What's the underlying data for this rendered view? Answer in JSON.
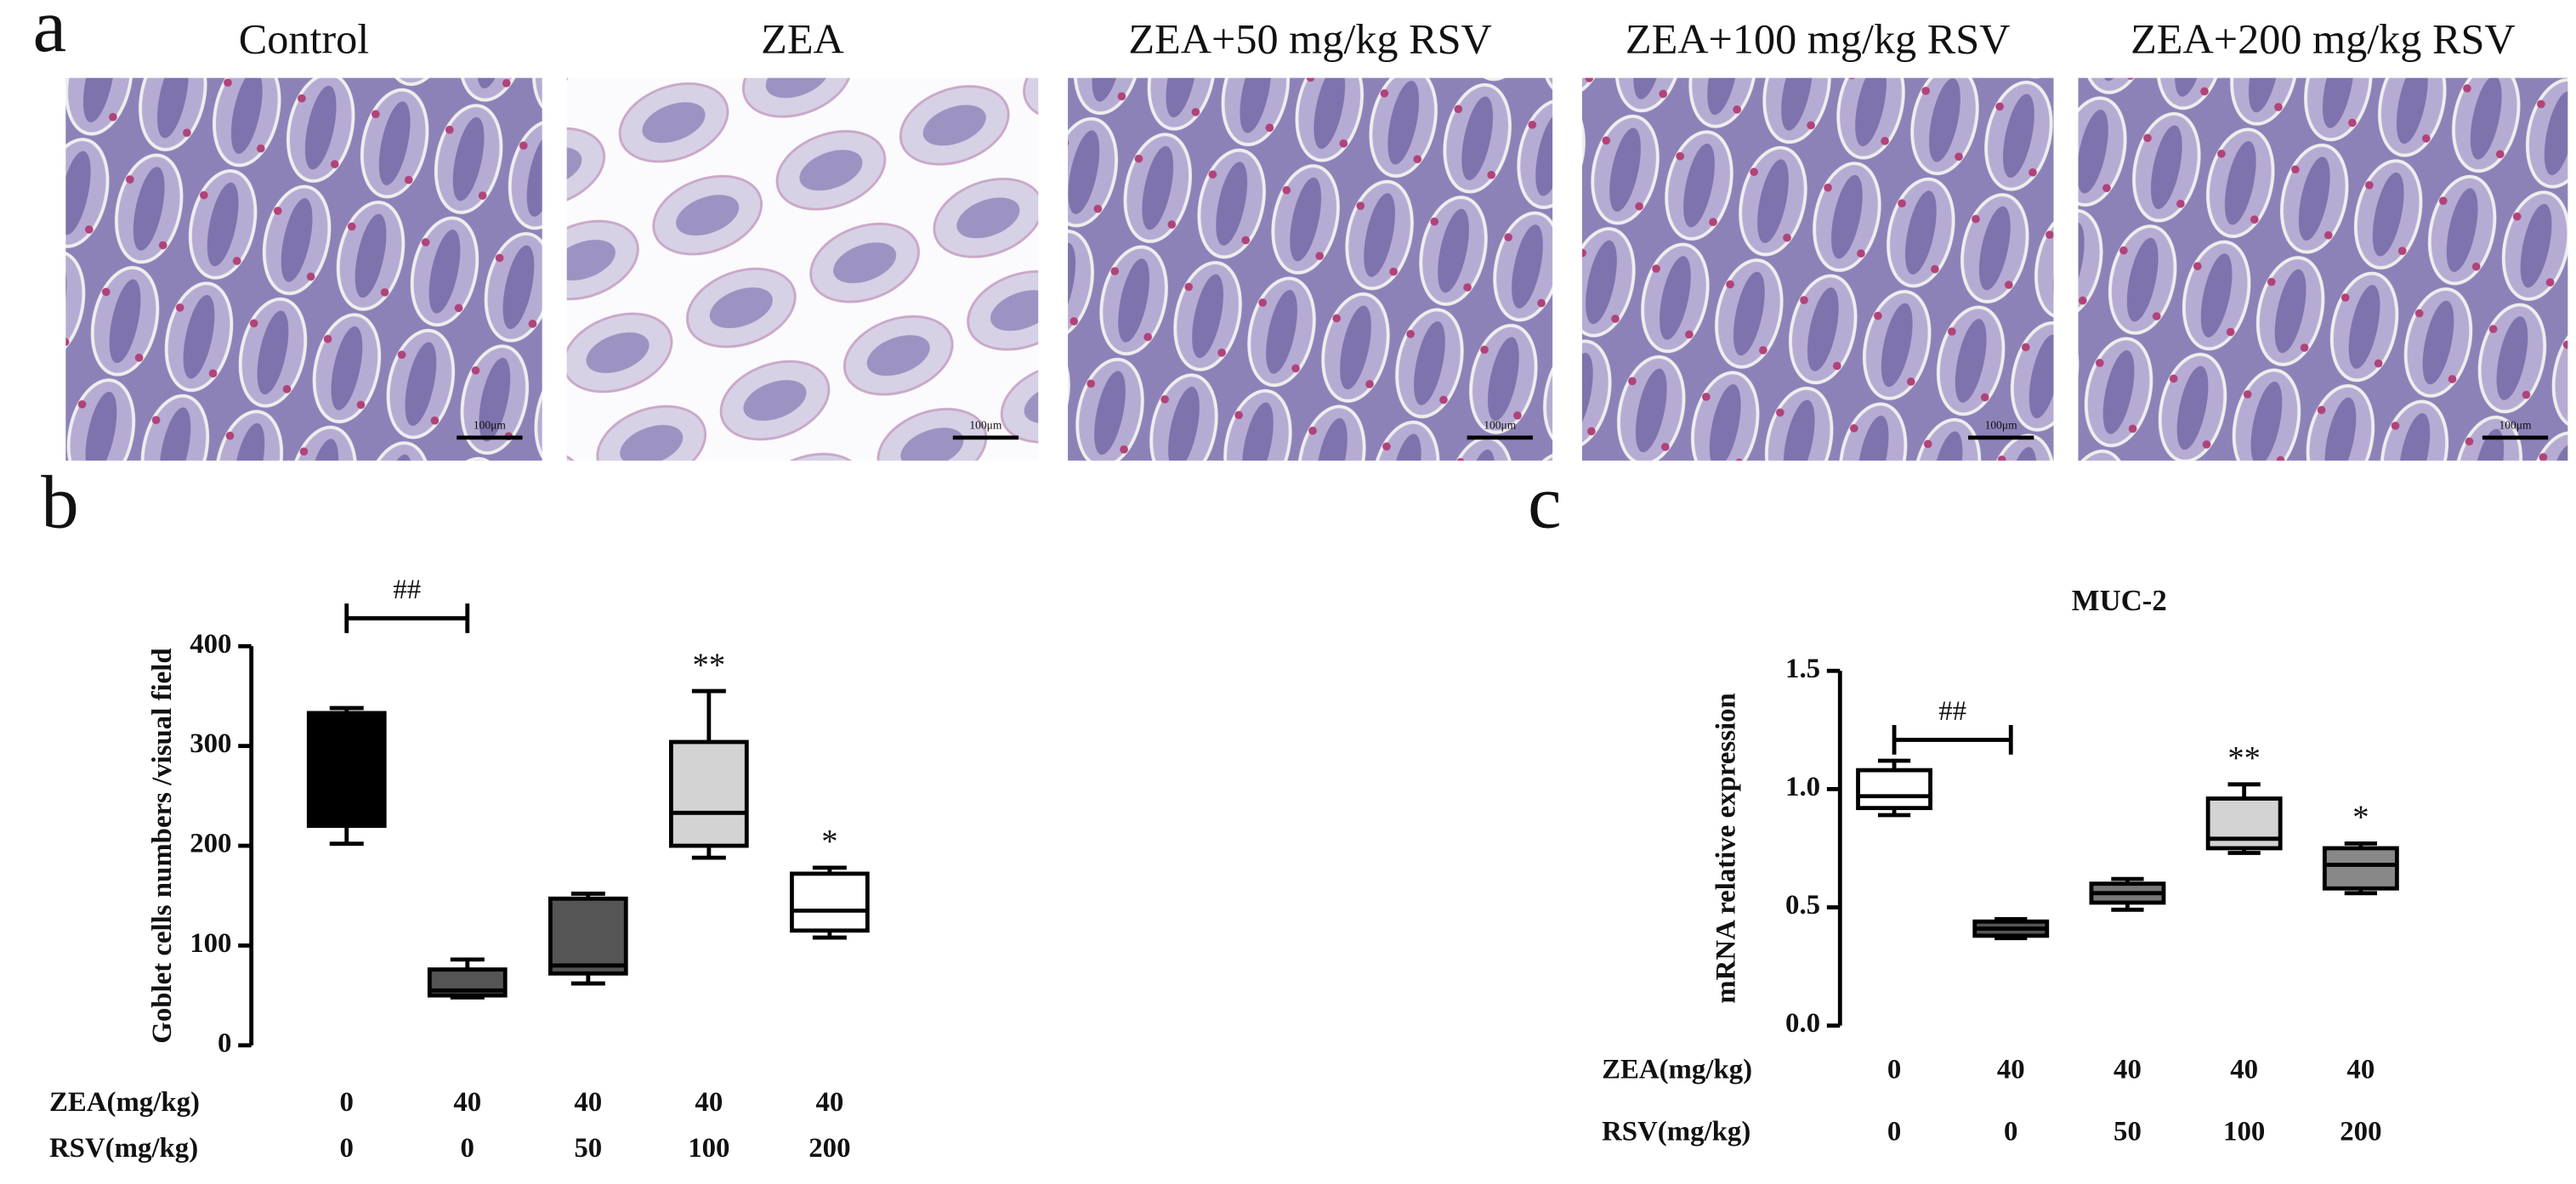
{
  "figure": {
    "panel_labels": [
      "a",
      "b",
      "c"
    ],
    "images": [
      {
        "title": "Control",
        "scale_bar": "100μm"
      },
      {
        "title": "ZEA",
        "scale_bar": "100μm"
      },
      {
        "title": "ZEA+50 mg/kg RSV",
        "scale_bar": "100μm"
      },
      {
        "title": "ZEA+100 mg/kg RSV",
        "scale_bar": "100μm"
      },
      {
        "title": "ZEA+200 mg/kg RSV",
        "scale_bar": "100μm"
      }
    ]
  },
  "chart_data": [
    {
      "type": "box",
      "ylabel": "Goblet cells numbers /visual field",
      "ylim": [
        0,
        400
      ],
      "yticks": [
        0,
        100,
        200,
        300,
        400
      ],
      "bracket_label": "##",
      "category_rows": [
        {
          "label": "ZEA(mg/kg)",
          "values": [
            0,
            40,
            40,
            40,
            40
          ]
        },
        {
          "label": "RSV(mg/kg)",
          "values": [
            0,
            0,
            50,
            100,
            200
          ]
        }
      ],
      "boxes": [
        {
          "color": "#000000",
          "min": 202,
          "q1": 220,
          "median": 330,
          "q3": 333,
          "max": 338
        },
        {
          "color": "#555555",
          "min": 48,
          "q1": 50,
          "median": 55,
          "q3": 76,
          "max": 86
        },
        {
          "color": "#555555",
          "min": 62,
          "q1": 72,
          "median": 80,
          "q3": 147,
          "max": 152
        },
        {
          "color": "#d3d3d3",
          "min": 188,
          "q1": 200,
          "median": 233,
          "q3": 304,
          "max": 355,
          "sig": "**"
        },
        {
          "color": "#ffffff",
          "min": 108,
          "q1": 115,
          "median": 135,
          "q3": 172,
          "max": 178,
          "sig": "*"
        }
      ]
    },
    {
      "type": "box",
      "title": "MUC-2",
      "ylabel": "mRNA relative expression",
      "ylim": [
        0,
        1.5
      ],
      "yticks": [
        {
          "value": 0,
          "label": "0.0"
        },
        0.5,
        {
          "value": 1,
          "label": "1.0"
        },
        1.5
      ],
      "bracket_label": "##",
      "category_rows": [
        {
          "label": "ZEA(mg/kg)",
          "values": [
            0,
            40,
            40,
            40,
            40
          ]
        },
        {
          "label": "RSV(mg/kg)",
          "values": [
            0,
            0,
            50,
            100,
            200
          ]
        }
      ],
      "boxes": [
        {
          "color": "#ffffff",
          "min": 0.89,
          "q1": 0.92,
          "median": 0.97,
          "q3": 1.08,
          "max": 1.12
        },
        {
          "color": "#555555",
          "min": 0.37,
          "q1": 0.38,
          "median": 0.41,
          "q3": 0.44,
          "max": 0.45
        },
        {
          "color": "#777777",
          "min": 0.49,
          "q1": 0.52,
          "median": 0.56,
          "q3": 0.6,
          "max": 0.62
        },
        {
          "color": "#d3d3d3",
          "min": 0.73,
          "q1": 0.75,
          "median": 0.79,
          "q3": 0.96,
          "max": 1.02,
          "sig": "**"
        },
        {
          "color": "#888888",
          "min": 0.56,
          "q1": 0.58,
          "median": 0.68,
          "q3": 0.75,
          "max": 0.77,
          "sig": "*"
        }
      ]
    }
  ]
}
